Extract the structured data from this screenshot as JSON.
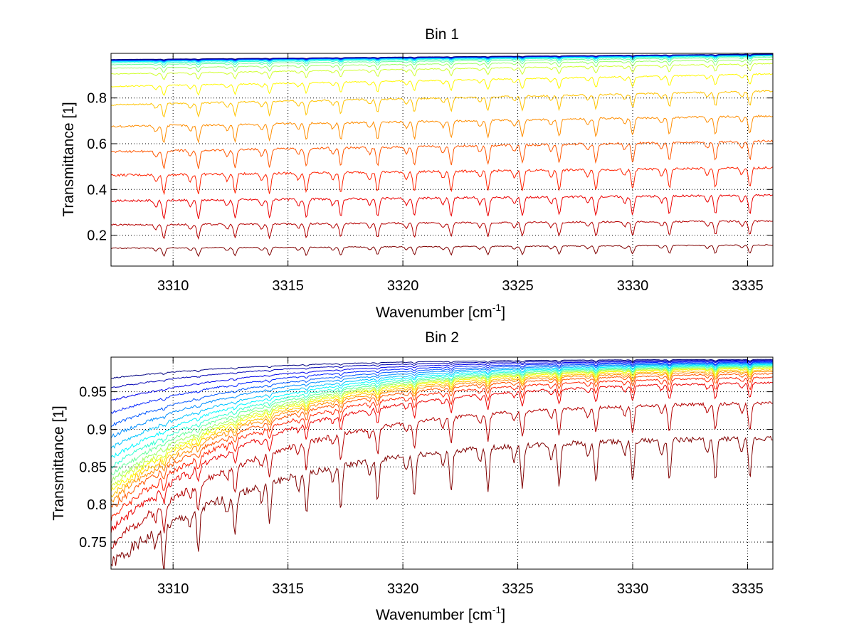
{
  "chart_data": [
    {
      "type": "line",
      "title": "Bin 1",
      "xlabel": "Wavenumber [cm",
      "xlabel_sup": "-1",
      "xlabel_end": "]",
      "ylabel": "Transmittance [1]",
      "xlim": [
        3307.3,
        3336.1
      ],
      "ylim": [
        0.065,
        0.995
      ],
      "xticks": [
        3310,
        3315,
        3320,
        3325,
        3330,
        3335
      ],
      "xtick_labels": [
        "3310",
        "3315",
        "3320",
        "3325",
        "3330",
        "3335"
      ],
      "yticks": [
        0.2,
        0.4,
        0.6,
        0.8
      ],
      "ytick_labels": [
        "0.2",
        "0.4",
        "0.6",
        "0.8"
      ],
      "grid": true,
      "colormap": "jet",
      "absorption_lines": [
        3309.6,
        3311.1,
        3312.7,
        3314.2,
        3315.8,
        3317.3,
        3318.9,
        3320.5,
        3322.1,
        3323.7,
        3325.2,
        3326.8,
        3328.4,
        3330.0,
        3331.6,
        3333.6,
        3335.1
      ],
      "series": [
        {
          "start": 0.143,
          "end": 0.157,
          "depth": 0.035
        },
        {
          "start": 0.245,
          "end": 0.262,
          "depth": 0.06
        },
        {
          "start": 0.35,
          "end": 0.375,
          "depth": 0.08
        },
        {
          "start": 0.462,
          "end": 0.495,
          "depth": 0.085
        },
        {
          "start": 0.565,
          "end": 0.612,
          "depth": 0.08
        },
        {
          "start": 0.675,
          "end": 0.722,
          "depth": 0.075
        },
        {
          "start": 0.77,
          "end": 0.83,
          "depth": 0.06
        },
        {
          "start": 0.85,
          "end": 0.905,
          "depth": 0.045
        },
        {
          "start": 0.905,
          "end": 0.95,
          "depth": 0.03
        },
        {
          "start": 0.93,
          "end": 0.968,
          "depth": 0.022
        },
        {
          "start": 0.945,
          "end": 0.978,
          "depth": 0.016
        },
        {
          "start": 0.953,
          "end": 0.983,
          "depth": 0.012
        },
        {
          "start": 0.958,
          "end": 0.986,
          "depth": 0.009
        },
        {
          "start": 0.961,
          "end": 0.988,
          "depth": 0.007
        },
        {
          "start": 0.963,
          "end": 0.989,
          "depth": 0.006
        },
        {
          "start": 0.964,
          "end": 0.99,
          "depth": 0.005
        },
        {
          "start": 0.965,
          "end": 0.991,
          "depth": 0.004
        },
        {
          "start": 0.966,
          "end": 0.991,
          "depth": 0.004
        },
        {
          "start": 0.967,
          "end": 0.992,
          "depth": 0.003
        },
        {
          "start": 0.968,
          "end": 0.992,
          "depth": 0.003
        }
      ]
    },
    {
      "type": "line",
      "title": "Bin 2",
      "xlabel": "Wavenumber [cm",
      "xlabel_sup": "-1",
      "xlabel_end": "]",
      "ylabel": "Transmittance [1]",
      "xlim": [
        3307.3,
        3336.1
      ],
      "ylim": [
        0.714,
        0.996
      ],
      "xticks": [
        3310,
        3315,
        3320,
        3325,
        3330,
        3335
      ],
      "xtick_labels": [
        "3310",
        "3315",
        "3320",
        "3325",
        "3330",
        "3335"
      ],
      "yticks": [
        0.75,
        0.8,
        0.85,
        0.9,
        0.95
      ],
      "ytick_labels": [
        "0.75",
        "0.8",
        "0.85",
        "0.9",
        "0.95"
      ],
      "grid": true,
      "colormap": "jet",
      "absorption_lines": [
        3309.6,
        3311.1,
        3312.7,
        3314.2,
        3315.8,
        3317.3,
        3318.9,
        3320.5,
        3322.1,
        3323.7,
        3325.2,
        3326.8,
        3328.4,
        3330.0,
        3331.6,
        3333.6,
        3335.1
      ],
      "series": [
        {
          "start": 0.72,
          "end": 0.888,
          "depth": 0.055
        },
        {
          "start": 0.745,
          "end": 0.935,
          "depth": 0.035
        },
        {
          "start": 0.765,
          "end": 0.962,
          "depth": 0.02
        },
        {
          "start": 0.782,
          "end": 0.969,
          "depth": 0.016
        },
        {
          "start": 0.795,
          "end": 0.974,
          "depth": 0.012
        },
        {
          "start": 0.805,
          "end": 0.977,
          "depth": 0.01
        },
        {
          "start": 0.812,
          "end": 0.979,
          "depth": 0.009
        },
        {
          "start": 0.818,
          "end": 0.981,
          "depth": 0.008
        },
        {
          "start": 0.824,
          "end": 0.982,
          "depth": 0.007
        },
        {
          "start": 0.831,
          "end": 0.983,
          "depth": 0.006
        },
        {
          "start": 0.84,
          "end": 0.984,
          "depth": 0.005
        },
        {
          "start": 0.85,
          "end": 0.985,
          "depth": 0.005
        },
        {
          "start": 0.862,
          "end": 0.986,
          "depth": 0.004
        },
        {
          "start": 0.875,
          "end": 0.987,
          "depth": 0.004
        },
        {
          "start": 0.89,
          "end": 0.988,
          "depth": 0.003
        },
        {
          "start": 0.905,
          "end": 0.989,
          "depth": 0.003
        },
        {
          "start": 0.922,
          "end": 0.99,
          "depth": 0.003
        },
        {
          "start": 0.938,
          "end": 0.991,
          "depth": 0.002
        },
        {
          "start": 0.955,
          "end": 0.992,
          "depth": 0.002
        },
        {
          "start": 0.968,
          "end": 0.993,
          "depth": 0.002
        }
      ]
    }
  ]
}
